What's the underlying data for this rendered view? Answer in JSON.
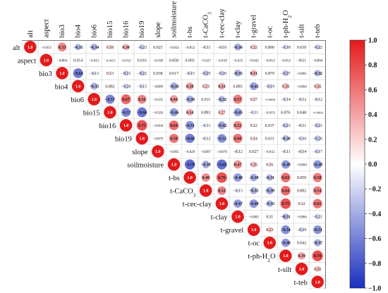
{
  "chart_data": {
    "type": "heatmap",
    "title": "",
    "style": "upper-triangular correlation plot with circles",
    "variables": [
      "alt",
      "aspect",
      "bio3",
      "bio4",
      "bio6",
      "bio15",
      "bio16",
      "bio19",
      "slope",
      "soilmoisture",
      "t-bs",
      "t-CaCO3",
      "t-cec-clay",
      "t-clay",
      "t-gravel",
      "t-oc",
      "t-ph-H2O",
      "t-silt",
      "t-teb"
    ],
    "variable_labels": {
      "t-CaCO3": {
        "base": "t-CaCO",
        "sub": "3"
      },
      "t-ph-H2O": {
        "base": "t-ph-H",
        "sub": "2",
        "tail": "O"
      }
    },
    "value_labels": [
      [
        "1.0",
        "−0.053",
        "0.53",
        "−0.31",
        "−0.34",
        "0.18",
        "0.30",
        "−0.23",
        "0.025",
        "−0.054",
        "−0.052",
        "−0.11",
        "−0.10",
        "−0.36",
        "0.22",
        "0.090",
        "−0.18",
        "0.039",
        "−0.22"
      ],
      [
        "1.0",
        "−0.094",
        "0.014",
        "−0.015",
        "−0.0053",
        "−0.012",
        "0.016",
        "−0.038",
        "0.058",
        "0.003",
        "−0.027",
        "−0.039",
        "−0.025",
        "−0.042",
        "−0.053",
        "−0.052",
        "−0.11",
        "−0.094"
      ],
      [
        "1.0",
        "−0.64",
        "−0.13",
        "0.13",
        "−0.21",
        "−0.22",
        "0.038",
        "0.017",
        "−0.15",
        "−0.25",
        "−0.20",
        "−0.35",
        "0.31",
        "0.079",
        "−0.27",
        "−0.081",
        "−0.32"
      ],
      [
        "1.0",
        "−0.35",
        "0.092",
        "−0.20",
        "−0.15",
        "−0.099",
        "−0.38",
        "0.38",
        "0.23",
        "0.33",
        "0.093",
        "−0.43",
        "−0.19",
        "0.28",
        "−0.084",
        "0.26"
      ],
      [
        "1.0",
        "−0.57",
        "0.67",
        "0.54",
        "−0.035",
        "0.44",
        "−0.38",
        "0.011",
        "−0.32",
        "0.57",
        "0.17",
        "−0.0068",
        "−0.14",
        "−0.12",
        "−0.12"
      ],
      [
        "1.0",
        "−0.57",
        "−0.66",
        "−0.020",
        "−0.46",
        "0.34",
        "0.093",
        "0.27",
        "−0.45",
        "−0.11",
        "−0.019",
        "0.076",
        "0.048",
        "−0.0064"
      ],
      [
        "1.0",
        "0.75",
        "−0.058",
        "0.64",
        "−0.51",
        "−0.11",
        "−0.42",
        "0.52",
        "0.12",
        "0.037",
        "−0.23",
        "−0.11",
        "−0.21"
      ],
      [
        "1.0",
        "−0.079",
        "0.59",
        "−0.60",
        "−0.12",
        "−0.52",
        "0.60",
        "0.14",
        "0.031",
        "−0.30",
        "−0.16",
        "−0.26"
      ],
      [
        "1.0",
        "−0.065",
        "−0.029",
        "−0.097",
        "−0.078",
        "−0.12",
        "0.027",
        "−0.032",
        "−0.11",
        "−0.14",
        "−0.17"
      ],
      [
        "1.0",
        "−0.70",
        "−0.39",
        "−0.68",
        "0.47",
        "0.26",
        "0.16",
        "−0.49",
        "−0.069",
        "−0.49"
      ],
      [
        "1.0",
        "0.49",
        "0.76",
        "−0.48",
        "−0.39",
        "−0.31",
        "0.63",
        "0.050",
        "0.58"
      ],
      [
        "1.0",
        "0.52",
        "−0.13",
        "−0.35",
        "−0.39",
        "0.64",
        "0.092",
        "0.54"
      ],
      [
        "1.0",
        "−0.47",
        "−0.49",
        "−0.33",
        "0.75",
        "0.12",
        "0.61"
      ],
      [
        "1.0",
        "−0.082",
        "0.11",
        "−0.31",
        "−0.084",
        "−0.21"
      ],
      [
        "1.0",
        "0.23",
        "−0.54",
        "−0.19",
        "−0.51"
      ],
      [
        "1.0",
        "−0.48",
        "0.042",
        "−0.37"
      ],
      [
        "1.0",
        "0.39",
        "0.78"
      ],
      [
        "1.0",
        "0.26"
      ],
      [
        "1.0"
      ]
    ],
    "colorbar": {
      "ticks": [
        "1.0",
        "0.8",
        "0.6",
        "0.4",
        "0.2",
        "0.0",
        "−0.2",
        "−0.4",
        "−0.6",
        "−0.8",
        "−1.0"
      ],
      "range": [
        -1,
        1
      ]
    },
    "colors": {
      "positive": "#e41a1c",
      "negative": "#1a2fbe",
      "neutral": "#ffffff"
    }
  }
}
